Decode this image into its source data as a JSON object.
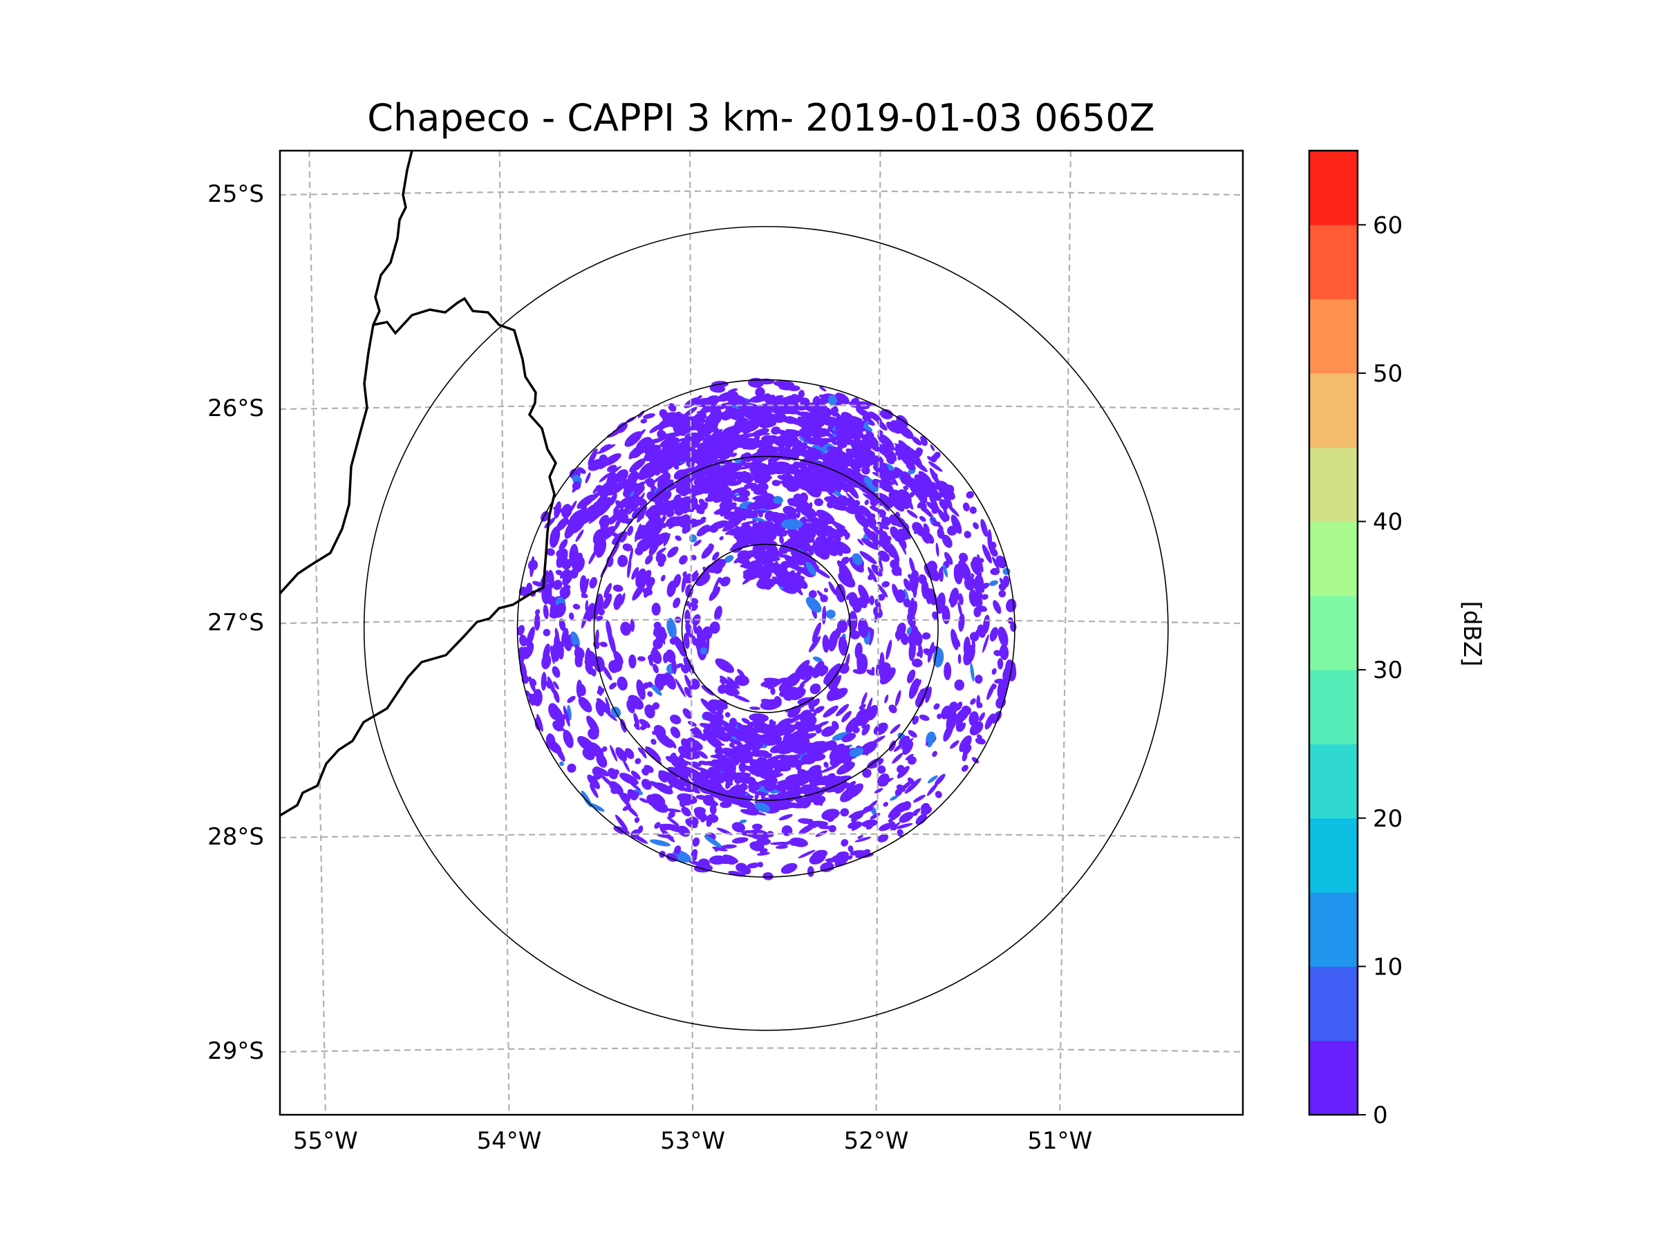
{
  "chart_data": {
    "type": "radar-map",
    "title": "Chapeco - CAPPI 3 km- 2019-01-03 0650Z",
    "map": {
      "lon_range": [
        -55.2,
        -50.05
      ],
      "lat_range": [
        -29.3,
        -24.8
      ],
      "longitude_ticks": [
        {
          "value": -55,
          "label": "55°W"
        },
        {
          "value": -54,
          "label": "54°W"
        },
        {
          "value": -53,
          "label": "53°W"
        },
        {
          "value": -52,
          "label": "52°W"
        },
        {
          "value": -51,
          "label": "51°W"
        }
      ],
      "latitude_ticks": [
        {
          "value": -25,
          "label": "25°S"
        },
        {
          "value": -26,
          "label": "26°S"
        },
        {
          "value": -27,
          "label": "27°S"
        },
        {
          "value": -28,
          "label": "28°S"
        },
        {
          "value": -29,
          "label": "29°S"
        }
      ],
      "gridlines": "dashed"
    },
    "radar": {
      "site": "Chapeco",
      "center_lon": -52.6,
      "center_lat": -27.03,
      "range_rings_deg": [
        0.45,
        0.92,
        1.33,
        2.15
      ]
    },
    "colorbar": {
      "label": "[dBZ]",
      "min": 0,
      "max": 65,
      "step": 5,
      "tick_values": [
        0,
        10,
        20,
        30,
        40,
        50,
        60
      ],
      "tick_labels": [
        "0",
        "10",
        "20",
        "30",
        "40",
        "50",
        "60"
      ],
      "colors": [
        "#6a1fff",
        "#3f5ff5",
        "#1f95ee",
        "#0bbee2",
        "#2fd9d2",
        "#55eeb8",
        "#80f9a4",
        "#a8f98e",
        "#d3df85",
        "#f3bb6c",
        "#ff9150",
        "#ff5b34",
        "#ff2318"
      ]
    },
    "echo_color": "#6a1fff",
    "echo_secondary_color": "#2f7df0",
    "echo_dbz_range": [
      0,
      10
    ]
  }
}
